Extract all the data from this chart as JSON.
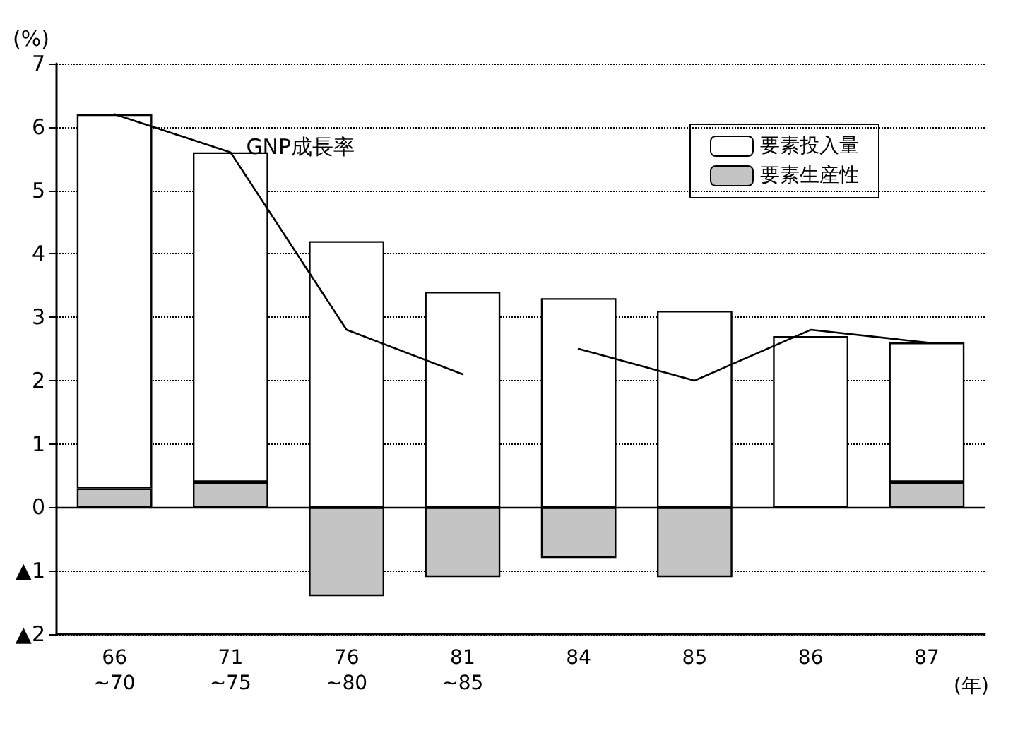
{
  "chart_data": {
    "type": "bar",
    "stacked": true,
    "categories": [
      "66\n~70",
      "71\n~75",
      "76\n~80",
      "81\n~85",
      "84",
      "85",
      "86",
      "87"
    ],
    "xlabel": "(年)",
    "ylabel": "(%)",
    "series": [
      {
        "name": "要素生産性",
        "color": "#c4c4c4",
        "values": [
          0.3,
          0.4,
          -1.4,
          -1.1,
          -0.8,
          -1.1,
          0,
          0.4
        ]
      },
      {
        "name": "要素投入量",
        "color": "#ffffff",
        "values": [
          5.9,
          5.2,
          4.2,
          3.4,
          3.3,
          3.1,
          2.7,
          2.2
        ]
      },
      {
        "name": "GNP成長率",
        "type": "line",
        "color": "#000000",
        "values": [
          6.2,
          5.6,
          2.8,
          2.1,
          null,
          null,
          null,
          null
        ]
      },
      {
        "type": "line",
        "color": "#000000",
        "values": [
          null,
          null,
          null,
          null,
          2.5,
          2.0,
          2.8,
          2.6
        ]
      }
    ],
    "ylim": [
      -2,
      7
    ],
    "yticks": [
      {
        "value": -2,
        "label": "▲2"
      },
      {
        "value": -1,
        "label": "▲1"
      },
      0,
      1,
      2,
      3,
      4,
      5,
      6,
      7
    ],
    "ref_lines": [
      {
        "axis": "y",
        "value": 0,
        "color": "#000000"
      }
    ],
    "grid": "y",
    "legend": "top right",
    "marker": "none",
    "line_style": "solid"
  }
}
